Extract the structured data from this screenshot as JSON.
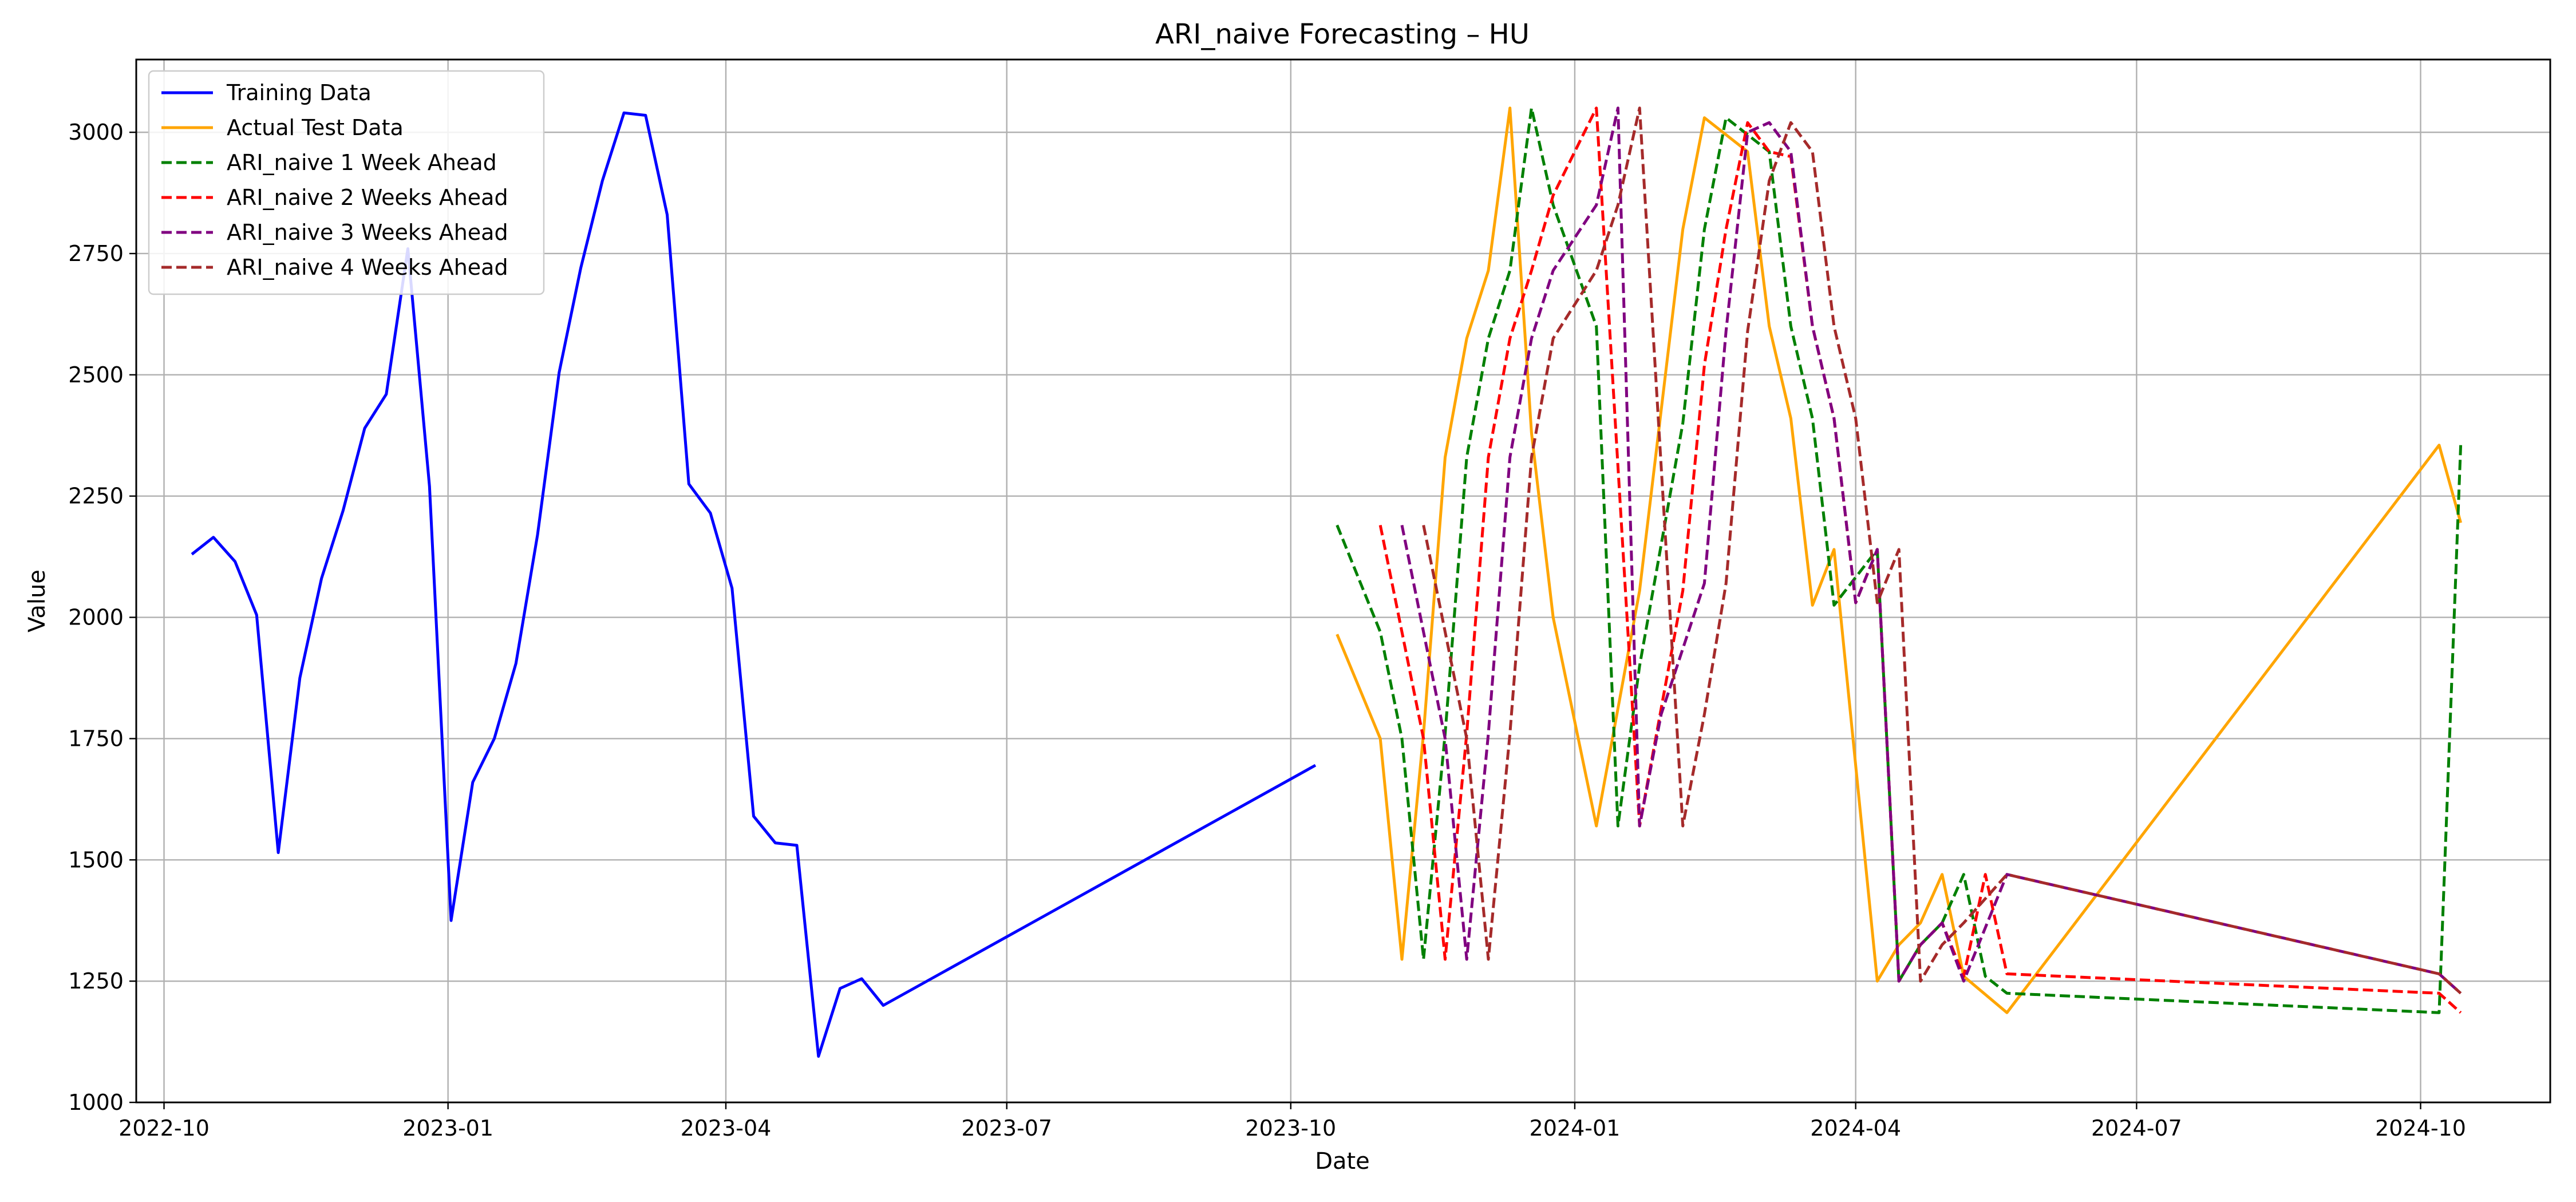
{
  "chart_data": {
    "type": "line",
    "title": "ARI_naive Forecasting – HU",
    "xlabel": "Date",
    "ylabel": "Value",
    "xlim": [
      "2022-09-22",
      "2024-11-12"
    ],
    "ylim": [
      1000,
      3150
    ],
    "grid": true,
    "legend_position": "top-left",
    "x_ticks": [
      "2022-10",
      "2023-01",
      "2023-04",
      "2023-07",
      "2023-10",
      "2024-01",
      "2024-04",
      "2024-07",
      "2024-10"
    ],
    "y_ticks": [
      1000,
      1250,
      1500,
      1750,
      2000,
      2250,
      2500,
      2750,
      3000
    ],
    "series": [
      {
        "name": "Training Data",
        "color": "#0000ff",
        "style": "solid",
        "x": [
          "2022-10-10",
          "2022-10-17",
          "2022-10-24",
          "2022-10-31",
          "2022-11-07",
          "2022-11-14",
          "2022-11-21",
          "2022-11-28",
          "2022-12-05",
          "2022-12-12",
          "2022-12-19",
          "2022-12-26",
          "2023-01-02",
          "2023-01-09",
          "2023-01-16",
          "2023-01-23",
          "2023-01-30",
          "2023-02-06",
          "2023-02-13",
          "2023-02-20",
          "2023-02-27",
          "2023-03-06",
          "2023-03-13",
          "2023-03-20",
          "2023-03-27",
          "2023-04-03",
          "2023-04-10",
          "2023-04-17",
          "2023-04-24",
          "2023-05-01",
          "2023-05-08",
          "2023-05-15",
          "2023-05-22",
          "2023-10-09"
        ],
        "values": [
          2130,
          2165,
          2115,
          2005,
          1515,
          1875,
          2080,
          2220,
          2390,
          2460,
          2760,
          2270,
          1375,
          1660,
          1750,
          1905,
          2170,
          2505,
          2720,
          2900,
          3040,
          3035,
          2830,
          2275,
          2215,
          2060,
          1590,
          1535,
          1530,
          1095,
          1235,
          1255,
          1200,
          1695
        ]
      },
      {
        "name": "Actual Test Data",
        "color": "#ffa500",
        "style": "solid",
        "x": [
          "2023-10-16",
          "2023-10-30",
          "2023-11-06",
          "2023-11-13",
          "2023-11-20",
          "2023-11-27",
          "2023-12-04",
          "2023-12-11",
          "2023-12-18",
          "2023-12-25",
          "2024-01-08",
          "2024-01-22",
          "2024-02-05",
          "2024-02-12",
          "2024-02-26",
          "2024-03-04",
          "2024-03-11",
          "2024-03-18",
          "2024-03-25",
          "2024-04-08",
          "2024-04-15",
          "2024-04-22",
          "2024-04-29",
          "2024-05-06",
          "2024-05-20",
          "2024-10-07",
          "2024-10-14"
        ],
        "values": [
          1965,
          1750,
          1295,
          1760,
          2330,
          2575,
          2715,
          3050,
          2380,
          2000,
          1570,
          2055,
          2800,
          3030,
          2960,
          2600,
          2410,
          2025,
          2140,
          1250,
          1325,
          1370,
          1470,
          1260,
          1185,
          2355,
          2195
        ]
      },
      {
        "name": "ARI_naive 1 Week Ahead",
        "color": "#008000",
        "style": "dashed",
        "x": [
          "2023-10-16",
          "2023-10-30",
          "2023-11-06",
          "2023-11-13",
          "2023-11-20",
          "2023-11-27",
          "2023-12-04",
          "2023-12-11",
          "2023-12-18",
          "2023-12-25",
          "2024-01-08",
          "2024-01-15",
          "2024-01-22",
          "2024-02-05",
          "2024-02-12",
          "2024-02-19",
          "2024-03-04",
          "2024-03-11",
          "2024-03-18",
          "2024-03-25",
          "2024-04-08",
          "2024-04-15",
          "2024-04-22",
          "2024-04-29",
          "2024-05-06",
          "2024-05-13",
          "2024-05-20",
          "2024-10-07",
          "2024-10-14"
        ],
        "values": [
          2190,
          1970,
          1750,
          1295,
          1760,
          2330,
          2575,
          2715,
          3050,
          2850,
          2600,
          1570,
          1900,
          2400,
          2800,
          3030,
          2960,
          2600,
          2410,
          2025,
          2140,
          1250,
          1325,
          1370,
          1470,
          1260,
          1225,
          1185,
          2355
        ]
      },
      {
        "name": "ARI_naive 2 Weeks Ahead",
        "color": "#ff0000",
        "style": "dashed",
        "x": [
          "2023-10-30",
          "2023-11-06",
          "2023-11-13",
          "2023-11-20",
          "2023-11-27",
          "2023-12-04",
          "2023-12-11",
          "2023-12-18",
          "2023-12-25",
          "2024-01-08",
          "2024-01-22",
          "2024-02-05",
          "2024-02-12",
          "2024-02-19",
          "2024-02-26",
          "2024-03-04",
          "2024-03-11",
          "2024-03-18",
          "2024-03-25",
          "2024-04-01",
          "2024-04-08",
          "2024-04-15",
          "2024-04-22",
          "2024-04-29",
          "2024-05-06",
          "2024-05-13",
          "2024-05-20",
          "2024-10-07",
          "2024-10-14"
        ],
        "values": [
          2190,
          1970,
          1750,
          1295,
          1760,
          2330,
          2575,
          2715,
          2870,
          3050,
          1570,
          2055,
          2520,
          2800,
          3020,
          2960,
          2950,
          2600,
          2410,
          2030,
          2140,
          1250,
          1325,
          1370,
          1260,
          1470,
          1265,
          1225,
          1185
        ]
      },
      {
        "name": "ARI_naive 3 Weeks Ahead",
        "color": "#800080",
        "style": "dashed",
        "x": [
          "2023-11-06",
          "2023-11-13",
          "2023-11-20",
          "2023-11-27",
          "2023-12-04",
          "2023-12-11",
          "2023-12-18",
          "2023-12-25",
          "2024-01-08",
          "2024-01-15",
          "2024-01-22",
          "2024-01-29",
          "2024-02-12",
          "2024-02-19",
          "2024-02-26",
          "2024-03-04",
          "2024-03-11",
          "2024-03-18",
          "2024-03-25",
          "2024-04-01",
          "2024-04-08",
          "2024-04-15",
          "2024-04-22",
          "2024-04-29",
          "2024-05-06",
          "2024-05-20",
          "2024-10-07",
          "2024-10-14"
        ],
        "values": [
          2190,
          1970,
          1750,
          1295,
          1760,
          2330,
          2575,
          2715,
          2850,
          3050,
          1570,
          1800,
          2070,
          2590,
          3000,
          3020,
          2960,
          2600,
          2410,
          2030,
          2140,
          1250,
          1325,
          1370,
          1250,
          1470,
          1265,
          1225
        ]
      },
      {
        "name": "ARI_naive 4 Weeks Ahead",
        "color": "#a52a2a",
        "style": "dashed",
        "x": [
          "2023-11-13",
          "2023-11-20",
          "2023-11-27",
          "2023-12-04",
          "2023-12-11",
          "2023-12-18",
          "2023-12-25",
          "2024-01-08",
          "2024-01-15",
          "2024-01-22",
          "2024-02-05",
          "2024-02-12",
          "2024-02-19",
          "2024-02-26",
          "2024-03-04",
          "2024-03-11",
          "2024-03-18",
          "2024-03-25",
          "2024-04-01",
          "2024-04-08",
          "2024-04-15",
          "2024-04-22",
          "2024-04-29",
          "2024-05-06",
          "2024-05-20",
          "2024-10-07",
          "2024-10-14"
        ],
        "values": [
          2190,
          1970,
          1750,
          1295,
          1760,
          2330,
          2575,
          2715,
          2850,
          3050,
          1570,
          1800,
          2070,
          2590,
          2900,
          3020,
          2960,
          2600,
          2410,
          2030,
          2140,
          1250,
          1325,
          1370,
          1470,
          1265,
          1225
        ]
      }
    ]
  }
}
